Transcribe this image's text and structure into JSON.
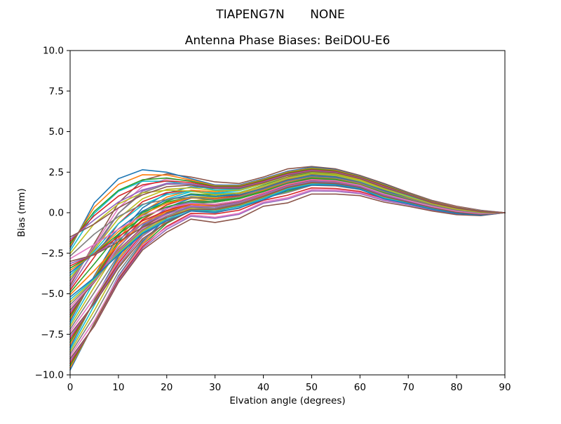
{
  "chart_data": {
    "type": "line",
    "suptitle_left": "TIAPENG7N",
    "suptitle_right": "NONE",
    "title": "Antenna Phase Biases: BeiDOU-E6",
    "xlabel": "Elvation angle (degrees)",
    "ylabel": "Bias (mm)",
    "xlim": [
      0,
      90
    ],
    "ylim": [
      -10,
      10
    ],
    "grid": false,
    "legend": "none",
    "background": "#ffffff",
    "line_width": 1.6,
    "palette": [
      "#1f77b4",
      "#ff7f0e",
      "#2ca02c",
      "#d62728",
      "#9467bd",
      "#8c564b",
      "#e377c2",
      "#7f7f7f",
      "#bcbd22",
      "#17becf"
    ],
    "xticks": {
      "values": [
        0,
        10,
        20,
        30,
        40,
        50,
        60,
        70,
        80,
        90
      ],
      "labels": [
        "0",
        "10",
        "20",
        "30",
        "40",
        "50",
        "60",
        "70",
        "80",
        "90"
      ]
    },
    "yticks": {
      "values": [
        10,
        7.5,
        5,
        2.5,
        0,
        -2.5,
        -5,
        -7.5,
        -10
      ],
      "labels": [
        "10.0",
        "7.5",
        "5.0",
        "2.5",
        "0.0",
        "−2.5",
        "−5.0",
        "−7.5",
        "−10.0"
      ]
    },
    "x": [
      0,
      5,
      10,
      15,
      20,
      25,
      30,
      35,
      40,
      45,
      50,
      55,
      60,
      65,
      70,
      75,
      80,
      85,
      90
    ],
    "series": [
      {
        "name": "curve-01",
        "values": [
          -9.7,
          -6.8,
          -3.9,
          -1.8,
          -0.3,
          0.5,
          0.7,
          0.9,
          1.3,
          1.8,
          2.1,
          2.0,
          1.7,
          1.15,
          0.8,
          0.4,
          0.1,
          -0.05,
          0
        ]
      },
      {
        "name": "curve-02",
        "values": [
          -9.0,
          -7.0,
          -4.3,
          -2.3,
          -1.2,
          -0.4,
          -0.6,
          -0.35,
          0.4,
          0.6,
          1.15,
          1.15,
          1.05,
          0.65,
          0.4,
          0.1,
          -0.12,
          -0.18,
          0
        ]
      },
      {
        "name": "curve-03",
        "values": [
          -8.3,
          -5.4,
          -2.7,
          -0.8,
          0.3,
          0.9,
          1.0,
          1.2,
          1.7,
          2.2,
          2.5,
          2.4,
          2.0,
          1.45,
          1.0,
          0.55,
          0.25,
          0.05,
          0
        ]
      },
      {
        "name": "curve-04",
        "values": [
          -7.5,
          -5.6,
          -3.4,
          -1.6,
          -0.6,
          0.1,
          0.1,
          0.4,
          0.9,
          1.5,
          1.8,
          1.8,
          1.5,
          0.9,
          0.6,
          0.25,
          0.0,
          -0.12,
          0
        ]
      },
      {
        "name": "curve-05",
        "values": [
          -6.7,
          -3.9,
          -1.4,
          0.3,
          1.2,
          1.6,
          1.5,
          1.6,
          2.0,
          2.5,
          2.75,
          2.6,
          2.2,
          1.65,
          1.15,
          0.65,
          0.3,
          0.08,
          0
        ]
      },
      {
        "name": "curve-06",
        "values": [
          -6.0,
          -4.3,
          -2.3,
          -0.9,
          0.0,
          0.5,
          0.45,
          0.7,
          1.2,
          1.7,
          2.0,
          1.95,
          1.65,
          1.1,
          0.75,
          0.35,
          0.05,
          -0.08,
          0
        ]
      },
      {
        "name": "curve-07",
        "values": [
          -5.2,
          -4.0,
          -2.6,
          -1.3,
          -0.5,
          0.1,
          0.0,
          0.3,
          0.8,
          1.4,
          1.7,
          1.7,
          1.45,
          0.85,
          0.55,
          0.2,
          -0.05,
          -0.15,
          0
        ]
      },
      {
        "name": "curve-08",
        "values": [
          -4.5,
          -1.9,
          0.6,
          2.0,
          2.4,
          2.2,
          1.9,
          1.8,
          2.2,
          2.7,
          2.85,
          2.7,
          2.3,
          1.8,
          1.25,
          0.75,
          0.4,
          0.15,
          0
        ]
      },
      {
        "name": "curve-09",
        "values": [
          -3.7,
          -2.5,
          -1.0,
          0.1,
          0.8,
          1.1,
          1.0,
          1.1,
          1.5,
          2.0,
          2.3,
          2.2,
          1.85,
          1.35,
          0.95,
          0.5,
          0.2,
          0.02,
          0
        ]
      },
      {
        "name": "curve-10",
        "values": [
          -3.0,
          -2.6,
          -1.8,
          -0.9,
          -0.3,
          0.2,
          0.2,
          0.5,
          1.0,
          1.55,
          1.85,
          1.8,
          1.55,
          1.0,
          0.65,
          0.3,
          0.02,
          -0.1,
          0
        ]
      },
      {
        "name": "curve-11",
        "values": [
          -2.2,
          0.6,
          2.1,
          2.65,
          2.5,
          2.1,
          1.7,
          1.7,
          2.1,
          2.55,
          2.8,
          2.65,
          2.25,
          1.75,
          1.2,
          0.7,
          0.35,
          0.12,
          0
        ]
      },
      {
        "name": "curve-12",
        "values": [
          -1.5,
          -0.7,
          0.3,
          1.1,
          1.6,
          1.7,
          1.5,
          1.5,
          1.85,
          2.3,
          2.55,
          2.45,
          2.1,
          1.55,
          1.1,
          0.6,
          0.28,
          0.06,
          0
        ]
      }
    ],
    "render": {
      "blend_fractions": [
        0.2,
        0.4,
        0.6,
        0.8
      ]
    }
  }
}
